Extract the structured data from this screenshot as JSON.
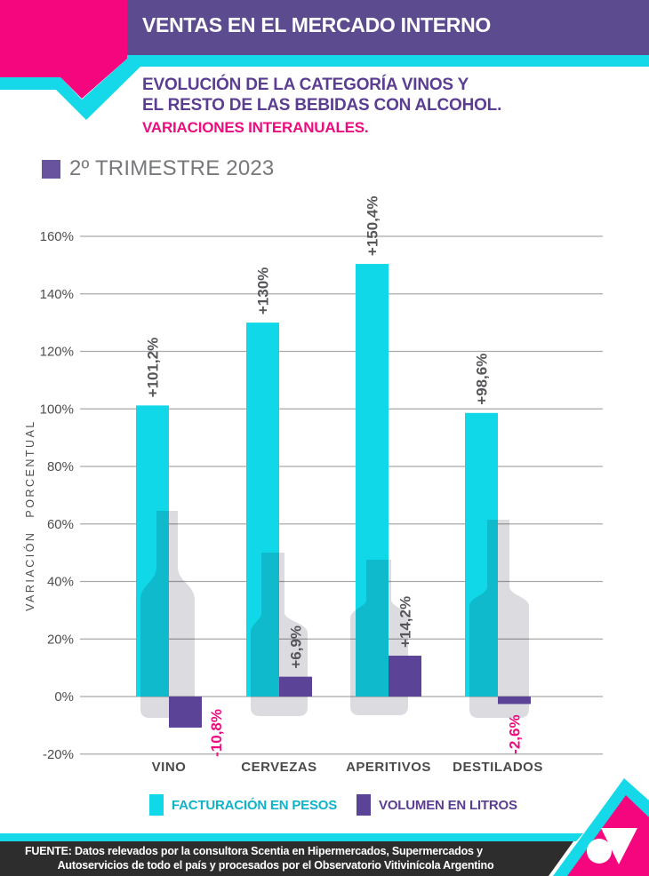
{
  "header": {
    "title": "VENTAS EN EL MERCADO INTERNO"
  },
  "subtitle": {
    "line1": "EVOLUCIÓN DE LA CATEGORÍA VINOS Y",
    "line2": "EL RESTO DE LAS BEBIDAS CON ALCOHOL.",
    "tagline": "VARIACIONES INTERANUALES."
  },
  "period": {
    "label": "2º TRIMESTRE 2023"
  },
  "chart_data": {
    "type": "bar",
    "categories": [
      "VINO",
      "CERVEZAS",
      "APERITIVOS",
      "DESTILADOS"
    ],
    "series": [
      {
        "name": "FACTURACIÓN EN PESOS",
        "color": "#10d8e8",
        "values": [
          101.2,
          130,
          150.4,
          98.6
        ],
        "labels": [
          "+101,2%",
          "+130%",
          "+150,4%",
          "+98,6%"
        ]
      },
      {
        "name": "VOLUMEN EN LITROS",
        "color": "#5b4397",
        "values": [
          -10.8,
          6.9,
          14.2,
          -2.6
        ],
        "labels": [
          "-10,8%",
          "+6,9%",
          "+14,2%",
          "-2,6%"
        ]
      }
    ],
    "ylabel": "VARIACIÓN PORCENTUAL",
    "ylim": [
      -20,
      160
    ],
    "ytick_step": 20,
    "ytick_suffix": "%",
    "grid": true,
    "legend_position": "bottom",
    "positive_label_color": "#55565a",
    "negative_label_color": "#ec0c7e"
  },
  "footer": {
    "line1": "FUENTE: Datos relevados por la consultora Scentia en Hipermercados, Supermercados y",
    "line2": "Autoservicios de todo el país y procesados por el Observatorio Vitivinícola Argentino"
  },
  "colors": {
    "pink": "#f5067e",
    "header_purple": "#5d4b8f",
    "cyan": "#15d9e8",
    "bar_purple": "#5b4397",
    "bottle_gray": "#dcdce0",
    "gridline": "#a9a9a9",
    "axis_text": "#4e4e50"
  }
}
